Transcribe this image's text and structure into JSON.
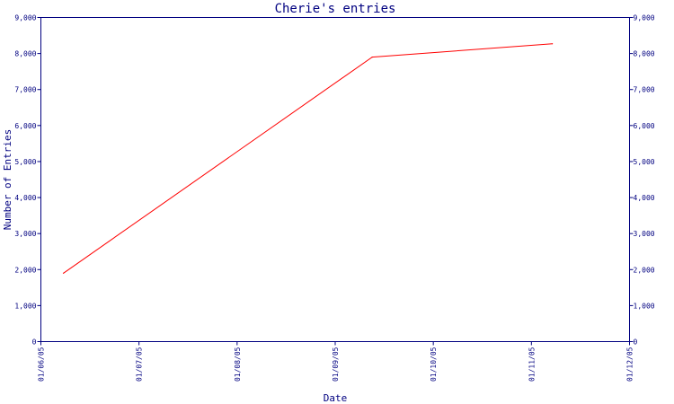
{
  "chart_data": {
    "type": "line",
    "title": "Cherie's entries",
    "xlabel": "Date",
    "ylabel": "Number of Entries",
    "x_ticks": [
      "01/06/05",
      "01/07/05",
      "01/08/05",
      "01/09/05",
      "01/10/05",
      "01/11/05",
      "01/12/05"
    ],
    "y_ticks": [
      "0",
      "1,000",
      "2,000",
      "3,000",
      "4,000",
      "5,000",
      "6,000",
      "7,000",
      "8,000",
      "9,000"
    ],
    "ylim": [
      0,
      9000
    ],
    "xlim": [
      "2005-06-01",
      "2005-12-01"
    ],
    "grid": false,
    "series": [
      {
        "color": "#ff0000",
        "x": [
          "2005-06-08",
          "2005-09-12",
          "2005-11-07"
        ],
        "y": [
          1900,
          7900,
          8270
        ]
      }
    ]
  }
}
